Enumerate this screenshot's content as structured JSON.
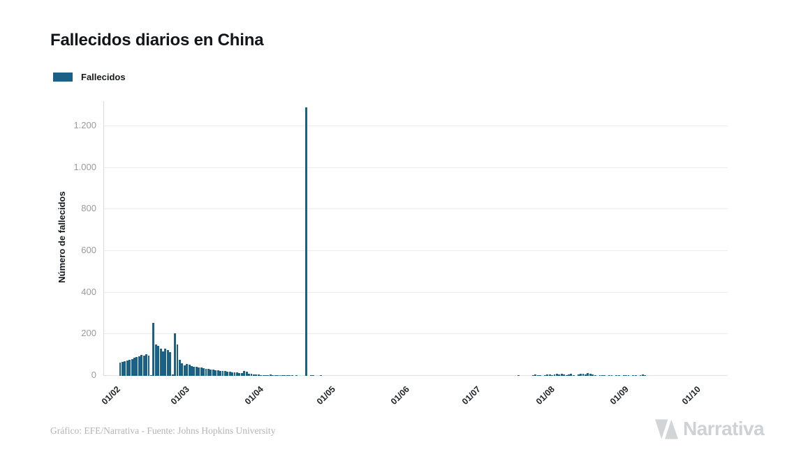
{
  "header": {
    "title": "Fallecidos diarios en China"
  },
  "legend": {
    "label": "Fallecidos"
  },
  "footer": {
    "credit": "Gráfico: EFE/Narrativa - Fuente: Johns Hopkins University",
    "logo_text": "Narrativa"
  },
  "chart_data": {
    "type": "bar",
    "title": "Fallecidos diarios en China",
    "ylabel": "Número de fallecidos",
    "xlabel": "",
    "legend_position": "top-left",
    "grid": "horizontal",
    "ylim": [
      0,
      1320
    ],
    "series": [
      {
        "name": "Fallecidos",
        "color": "#1b6186"
      }
    ],
    "y_ticks": [
      {
        "label": "0",
        "value": 0
      },
      {
        "label": "200",
        "value": 200
      },
      {
        "label": "400",
        "value": 400
      },
      {
        "label": "600",
        "value": 600
      },
      {
        "label": "800",
        "value": 800
      },
      {
        "label": "1.000",
        "value": 1000
      },
      {
        "label": "1.200",
        "value": 1200
      }
    ],
    "x_ticks": [
      {
        "label": "01/02",
        "day_offset": 0
      },
      {
        "label": "01/03",
        "day_offset": 29
      },
      {
        "label": "01/04",
        "day_offset": 60
      },
      {
        "label": "01/05",
        "day_offset": 90
      },
      {
        "label": "01/06",
        "day_offset": 121
      },
      {
        "label": "01/07",
        "day_offset": 151
      },
      {
        "label": "01/08",
        "day_offset": 182
      },
      {
        "label": "01/09",
        "day_offset": 213
      },
      {
        "label": "01/10",
        "day_offset": 243
      }
    ],
    "start_date_label": "01/02",
    "peak_value": 1290,
    "values": [
      65,
      68,
      72,
      75,
      78,
      82,
      86,
      90,
      95,
      100,
      98,
      103,
      97,
      5,
      254,
      152,
      143,
      132,
      118,
      130,
      124,
      115,
      6,
      205,
      150,
      76,
      60,
      50,
      56,
      52,
      47,
      44,
      45,
      41,
      39,
      36,
      34,
      35,
      31,
      29,
      28,
      27,
      25,
      23,
      22,
      21,
      20,
      18,
      17,
      16,
      15,
      14,
      22,
      20,
      10,
      9,
      8,
      7,
      6,
      5,
      4,
      4,
      3,
      6,
      2,
      3,
      2,
      2,
      1,
      1,
      2,
      1,
      1,
      0,
      1,
      0,
      0,
      0,
      1290,
      0,
      2,
      1,
      0,
      0,
      1,
      0,
      0,
      0,
      0,
      0,
      0,
      0,
      0,
      0,
      0,
      0,
      0,
      0,
      0,
      0,
      0,
      0,
      0,
      0,
      0,
      0,
      0,
      0,
      0,
      0,
      0,
      0,
      0,
      0,
      0,
      0,
      0,
      0,
      0,
      0,
      0,
      0,
      0,
      0,
      0,
      0,
      0,
      0,
      0,
      0,
      0,
      0,
      0,
      0,
      0,
      0,
      0,
      0,
      0,
      0,
      0,
      0,
      0,
      0,
      0,
      0,
      0,
      0,
      0,
      0,
      0,
      0,
      0,
      0,
      0,
      0,
      0,
      0,
      0,
      0,
      0,
      0,
      0,
      0,
      0,
      0,
      0,
      3,
      0,
      0,
      0,
      0,
      0,
      4,
      6,
      2,
      3,
      0,
      5,
      8,
      6,
      4,
      7,
      9,
      8,
      10,
      6,
      5,
      8,
      9,
      3,
      0,
      6,
      10,
      9,
      8,
      12,
      9,
      7,
      4,
      0,
      3,
      5,
      2,
      0,
      4,
      3,
      0,
      2,
      5,
      0,
      3,
      2,
      4,
      0,
      2,
      3,
      0,
      2,
      6,
      3,
      0,
      0,
      0,
      0,
      0,
      0,
      0,
      0,
      0,
      0,
      0,
      0,
      0,
      0,
      0,
      0,
      0,
      0,
      0,
      0,
      0,
      0,
      0
    ]
  }
}
